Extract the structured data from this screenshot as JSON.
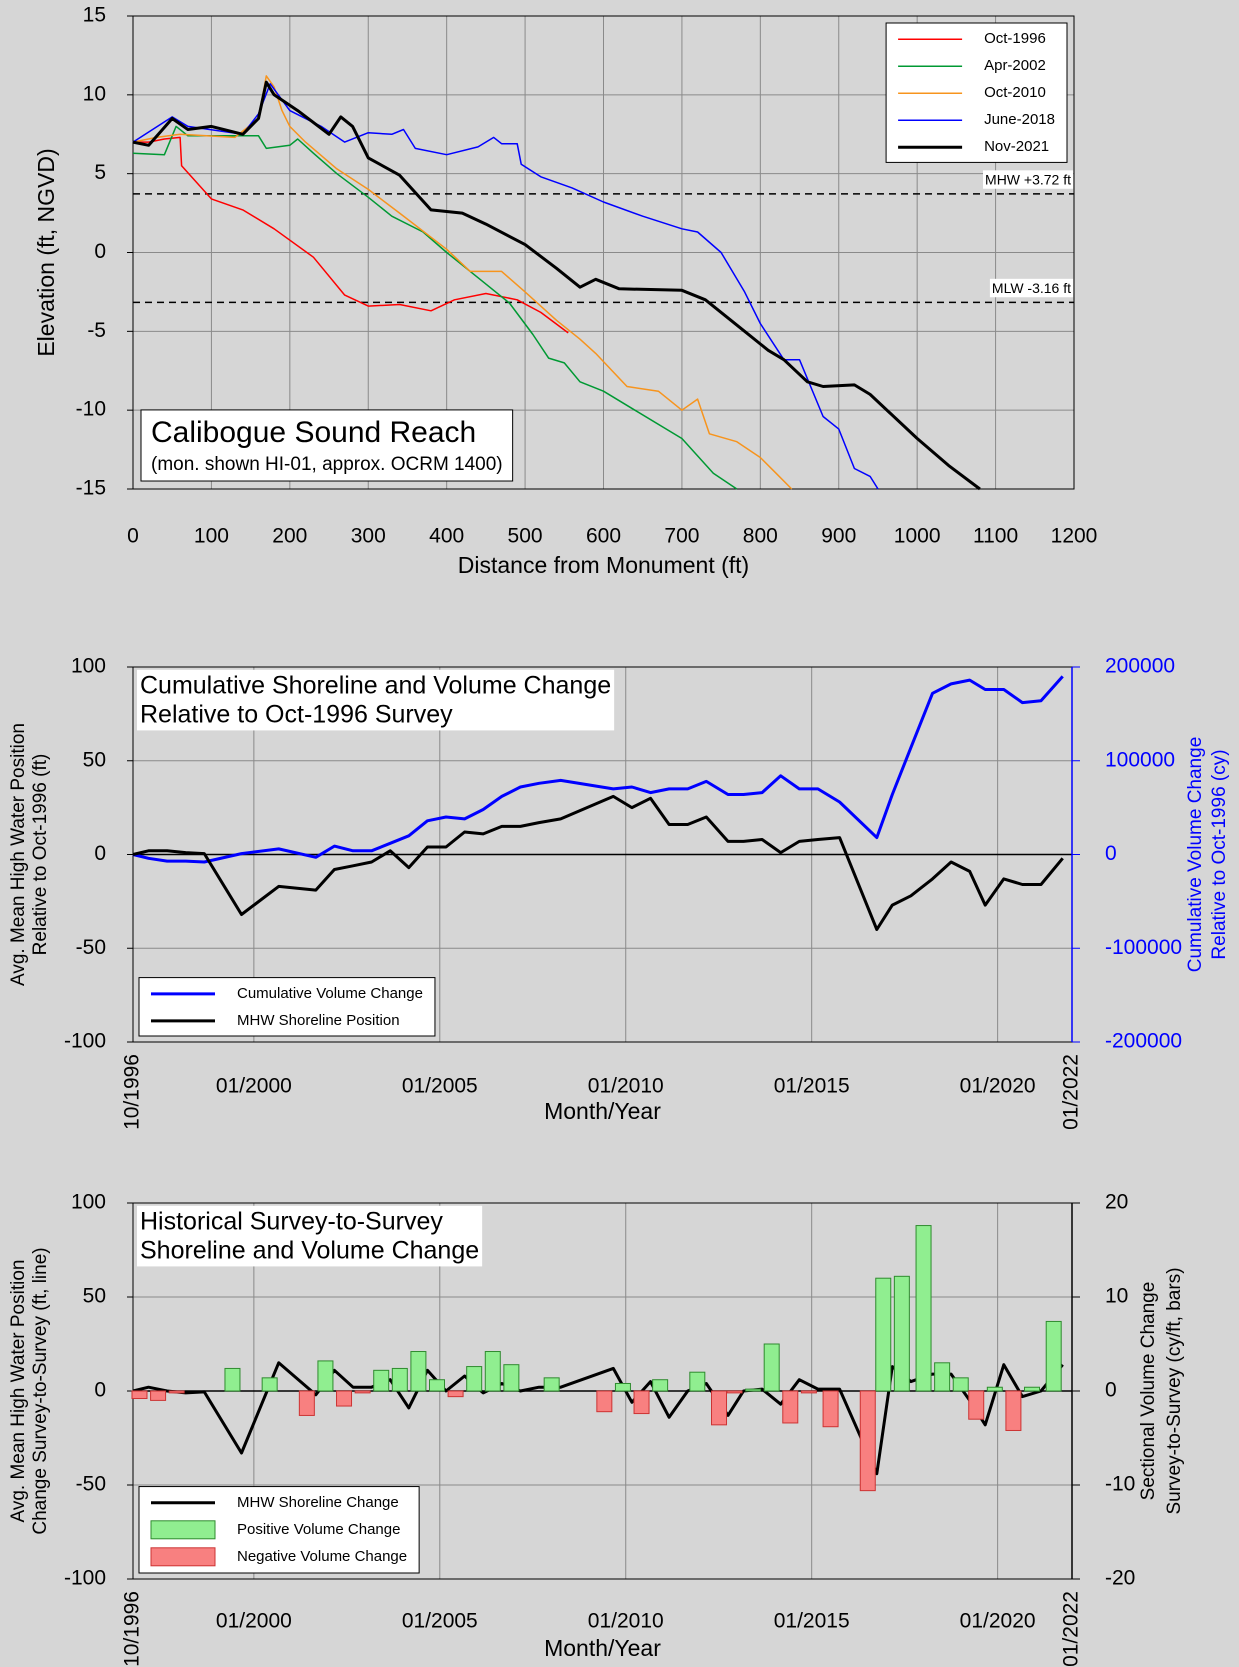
{
  "chart_data": [
    {
      "type": "line",
      "annotation": {
        "title": "Calibogue Sound Reach",
        "subtitle": "(mon. shown HI-01, approx. OCRM 1400)"
      },
      "xlabel": "Distance from Monument (ft)",
      "ylabel": "Elevation (ft, NGVD)",
      "xlim": [
        0,
        1200
      ],
      "xticks": [
        0,
        100,
        200,
        300,
        400,
        500,
        600,
        700,
        800,
        900,
        1000,
        1100,
        1200
      ],
      "ylim": [
        -15,
        15
      ],
      "yticks": [
        -15,
        -10,
        -5,
        0,
        5,
        10,
        15
      ],
      "grid": true,
      "legend": "upper right",
      "reference_lines": [
        {
          "value": 3.72,
          "label": "MHW +3.72 ft"
        },
        {
          "value": -3.16,
          "label": "MLW -3.16 ft"
        }
      ],
      "series": [
        {
          "name": "Oct-1996",
          "color": "#ff0000",
          "line_width": 1.5,
          "x": [
            0,
            20,
            40,
            60,
            62,
            100,
            140,
            180,
            230,
            270,
            300,
            340,
            380,
            410,
            450,
            490,
            520,
            555
          ],
          "values": [
            7,
            7,
            7.2,
            7.3,
            5.5,
            3.4,
            2.7,
            1.5,
            -0.3,
            -2.7,
            -3.4,
            -3.3,
            -3.7,
            -3.0,
            -2.6,
            -3.0,
            -3.8,
            -5.1
          ]
        },
        {
          "name": "Apr-2002",
          "color": "#009933",
          "line_width": 1.5,
          "x": [
            0,
            40,
            55,
            70,
            160,
            170,
            200,
            210,
            230,
            260,
            300,
            330,
            370,
            400,
            440,
            480,
            510,
            530,
            550,
            570,
            600,
            640,
            700,
            740,
            770
          ],
          "values": [
            6.3,
            6.2,
            8,
            7.4,
            7.4,
            6.6,
            6.8,
            7.2,
            6.3,
            5.0,
            3.5,
            2.3,
            1.3,
            0,
            -1.6,
            -3.2,
            -5.2,
            -6.7,
            -7,
            -8.2,
            -8.8,
            -10,
            -11.8,
            -14,
            -15
          ]
        },
        {
          "name": "Oct-2010",
          "color": "#f7941d",
          "line_width": 1.5,
          "x": [
            0,
            30,
            60,
            130,
            160,
            170,
            180,
            190,
            200,
            220,
            260,
            300,
            340,
            400,
            430,
            470,
            500,
            540,
            570,
            590,
            630,
            670,
            700,
            720,
            735,
            770,
            800,
            820,
            840
          ],
          "values": [
            7,
            7.3,
            7.5,
            7.3,
            8.5,
            11.2,
            10.5,
            9,
            8,
            7,
            5.3,
            4,
            2.5,
            0.2,
            -1.2,
            -1.2,
            -2.5,
            -4.3,
            -5.5,
            -6.4,
            -8.5,
            -8.8,
            -10,
            -9.3,
            -11.5,
            -12,
            -13,
            -14,
            -15
          ]
        },
        {
          "name": "June-2018",
          "color": "#0000ff",
          "line_width": 1.5,
          "x": [
            0,
            50,
            70,
            140,
            160,
            175,
            200,
            240,
            270,
            300,
            330,
            345,
            360,
            400,
            440,
            460,
            470,
            490,
            495,
            520,
            560,
            600,
            650,
            700,
            720,
            750,
            780,
            800,
            830,
            850,
            880,
            900,
            920,
            940,
            950
          ],
          "values": [
            7,
            8.6,
            8,
            7.5,
            8.8,
            10.7,
            9,
            8,
            7,
            7.6,
            7.5,
            7.8,
            6.6,
            6.2,
            6.7,
            7.3,
            6.9,
            6.9,
            5.6,
            4.8,
            4.1,
            3.2,
            2.3,
            1.5,
            1.3,
            0,
            -2.5,
            -4.5,
            -6.8,
            -6.8,
            -10.4,
            -11.2,
            -13.7,
            -14.2,
            -15
          ]
        },
        {
          "name": "Nov-2021",
          "color": "#000000",
          "line_width": 3,
          "x": [
            0,
            20,
            50,
            70,
            100,
            140,
            160,
            170,
            180,
            210,
            250,
            265,
            280,
            300,
            340,
            380,
            420,
            450,
            500,
            540,
            570,
            590,
            620,
            700,
            730,
            780,
            810,
            830,
            860,
            880,
            920,
            940,
            1000,
            1040,
            1080
          ],
          "values": [
            7,
            6.8,
            8.5,
            7.8,
            8,
            7.5,
            8.5,
            10.8,
            10,
            9,
            7.5,
            8.6,
            8,
            6,
            4.9,
            2.7,
            2.5,
            1.8,
            0.5,
            -1,
            -2.2,
            -1.7,
            -2.3,
            -2.4,
            -3,
            -5,
            -6.2,
            -6.8,
            -8.2,
            -8.5,
            -8.4,
            -9,
            -11.8,
            -13.5,
            -15
          ]
        }
      ]
    },
    {
      "type": "line",
      "title": [
        "Cumulative Shoreline and Volume Change",
        "Relative to Oct-1996 Survey"
      ],
      "xlabel": "Month/Year",
      "ylabel": [
        "Avg. Mean High Water Position",
        "Relative to Oct-1996 (ft)"
      ],
      "y2label": [
        "Cumulative Volume Change",
        "Relative to Oct-1996 (cy)"
      ],
      "y2_color": "#0000ff",
      "xlim": [
        "1996-10",
        "2022-01"
      ],
      "xticks": [
        {
          "value": "1996-10",
          "label": "10/1996"
        },
        {
          "value": "2000-01",
          "label": "01/2000"
        },
        {
          "value": "2005-01",
          "label": "01/2005"
        },
        {
          "value": "2010-01",
          "label": "01/2010"
        },
        {
          "value": "2015-01",
          "label": "01/2015"
        },
        {
          "value": "2020-01",
          "label": "01/2020"
        },
        {
          "value": "2022-01",
          "label": "01/2022"
        }
      ],
      "ylim": [
        -100,
        100
      ],
      "yticks": [
        -100,
        -50,
        0,
        50,
        100
      ],
      "y2lim": [
        -200000,
        200000
      ],
      "y2ticks": [
        -200000,
        -100000,
        0,
        100000,
        200000
      ],
      "grid": true,
      "zero_line": true,
      "legend": "lower left",
      "x": [
        "1996-10",
        "1997-03",
        "1997-09",
        "1998-03",
        "1998-09",
        "1999-09",
        "2000-09",
        "2001-09",
        "2002-03",
        "2002-09",
        "2003-03",
        "2003-09",
        "2004-03",
        "2004-09",
        "2005-03",
        "2005-09",
        "2006-03",
        "2006-09",
        "2007-03",
        "2007-09",
        "2008-04",
        "2009-09",
        "2010-03",
        "2010-09",
        "2011-03",
        "2011-09",
        "2012-03",
        "2012-10",
        "2013-03",
        "2013-09",
        "2014-03",
        "2014-09",
        "2015-03",
        "2015-10",
        "2016-10",
        "2017-03",
        "2017-09",
        "2018-04",
        "2018-10",
        "2019-04",
        "2019-09",
        "2020-03",
        "2020-09",
        "2021-03",
        "2021-10"
      ],
      "series": [
        {
          "name": "Cumulative Volume Change",
          "color": "#0000ff",
          "line_width": 3,
          "axis": "y2",
          "values": [
            0,
            -4000,
            -7000,
            -7000,
            -8000,
            1000,
            6000,
            -3000,
            9000,
            4000,
            4000,
            12000,
            20000,
            36000,
            40000,
            38000,
            48000,
            62000,
            72000,
            76000,
            79000,
            70000,
            72000,
            66000,
            70000,
            70000,
            78000,
            64000,
            64000,
            66000,
            84000,
            70000,
            70000,
            56000,
            18000,
            64000,
            114000,
            172000,
            182000,
            186000,
            176000,
            176000,
            162000,
            164000,
            190000
          ]
        },
        {
          "name": "MHW Shoreline Position",
          "color": "#000000",
          "line_width": 3,
          "values": [
            0,
            2,
            2,
            1,
            0.5,
            -32,
            -17,
            -19,
            -8,
            -6,
            -4,
            2,
            -7,
            4,
            4,
            12,
            11,
            15,
            15,
            17,
            19,
            31,
            25,
            30,
            16,
            16,
            20,
            7,
            7,
            8,
            1,
            7,
            8,
            9,
            -40,
            -27,
            -22,
            -13,
            -4,
            -9,
            -27,
            -13,
            -16,
            -16,
            -2
          ]
        }
      ]
    },
    {
      "type": "bar",
      "title": [
        "Historical Survey-to-Survey",
        "Shoreline and Volume Change"
      ],
      "xlabel": "Month/Year",
      "ylabel": [
        "Avg. Mean High Water Position",
        "Change Survey-to-Survey (ft, line)"
      ],
      "y2label": [
        "Sectional Volume Change",
        "Survey-to-Survey (cy/ft, bars)"
      ],
      "y2_color": "#000000",
      "xlim": [
        "1996-10",
        "2022-01"
      ],
      "xticks": [
        {
          "value": "1996-10",
          "label": "10/1996"
        },
        {
          "value": "2000-01",
          "label": "01/2000"
        },
        {
          "value": "2005-01",
          "label": "01/2005"
        },
        {
          "value": "2010-01",
          "label": "01/2010"
        },
        {
          "value": "2015-01",
          "label": "01/2015"
        },
        {
          "value": "2020-01",
          "label": "01/2020"
        },
        {
          "value": "2022-01",
          "label": "01/2022"
        }
      ],
      "ylim": [
        -100,
        100
      ],
      "yticks": [
        -100,
        -50,
        0,
        50,
        100
      ],
      "y2lim": [
        -20,
        20
      ],
      "y2ticks": [
        -20,
        -10,
        0,
        10,
        20
      ],
      "grid": true,
      "zero_line": true,
      "legend": "lower left",
      "x": [
        "1996-10",
        "1997-03",
        "1997-09",
        "1998-03",
        "1998-09",
        "1999-09",
        "2000-09",
        "2001-09",
        "2002-03",
        "2002-09",
        "2003-03",
        "2003-09",
        "2004-03",
        "2004-09",
        "2005-03",
        "2005-09",
        "2006-03",
        "2006-09",
        "2007-03",
        "2007-09",
        "2008-04",
        "2009-09",
        "2010-03",
        "2010-09",
        "2011-03",
        "2011-09",
        "2012-03",
        "2012-10",
        "2013-03",
        "2013-09",
        "2014-03",
        "2014-09",
        "2015-03",
        "2015-10",
        "2016-10",
        "2017-03",
        "2017-09",
        "2018-04",
        "2018-10",
        "2019-04",
        "2019-09",
        "2020-03",
        "2020-09",
        "2021-03",
        "2021-10"
      ],
      "series": [
        {
          "name": "MHW Shoreline Change",
          "type": "line",
          "color": "#000000",
          "line_width": 3,
          "values": [
            0,
            2,
            0,
            -1,
            -0.5,
            -33,
            15,
            -2,
            11,
            2,
            2,
            6,
            -9,
            11,
            0,
            8,
            -1,
            4,
            0,
            2,
            2,
            12,
            -6,
            5,
            -14,
            0,
            4,
            -13,
            0,
            1,
            -7,
            6,
            1,
            1,
            -44,
            13,
            5,
            9,
            9,
            -5,
            -18,
            14,
            -3,
            0,
            14
          ]
        },
        {
          "name": "Positive Volume Change",
          "color": "#90ee90",
          "edge_color": "#2e8b2e",
          "axis": "y2",
          "values": [
            null,
            null,
            null,
            null,
            null,
            2.4,
            1.4,
            null,
            3.2,
            null,
            null,
            2.2,
            2.4,
            4.2,
            1.2,
            null,
            2.6,
            4.2,
            2.8,
            null,
            1.4,
            null,
            0.8,
            null,
            1.2,
            null,
            2,
            null,
            null,
            0.2,
            5,
            null,
            null,
            null,
            null,
            12,
            12.2,
            17.6,
            3,
            1.4,
            null,
            0.4,
            null,
            0.4,
            7.4
          ]
        },
        {
          "name": "Negative Volume Change",
          "color": "#f88080",
          "edge_color": "#cc3333",
          "axis": "y2",
          "values": [
            null,
            -0.8,
            -1,
            -0.2,
            null,
            null,
            null,
            -2.6,
            null,
            -1.6,
            -0.2,
            null,
            null,
            null,
            null,
            -0.6,
            null,
            null,
            null,
            null,
            null,
            -2.2,
            null,
            -2.4,
            null,
            null,
            null,
            -3.6,
            -0.2,
            null,
            null,
            -3.4,
            -0.2,
            -3.8,
            -10.6,
            null,
            null,
            null,
            null,
            null,
            -3,
            null,
            -4.2,
            null,
            null
          ]
        }
      ]
    }
  ]
}
